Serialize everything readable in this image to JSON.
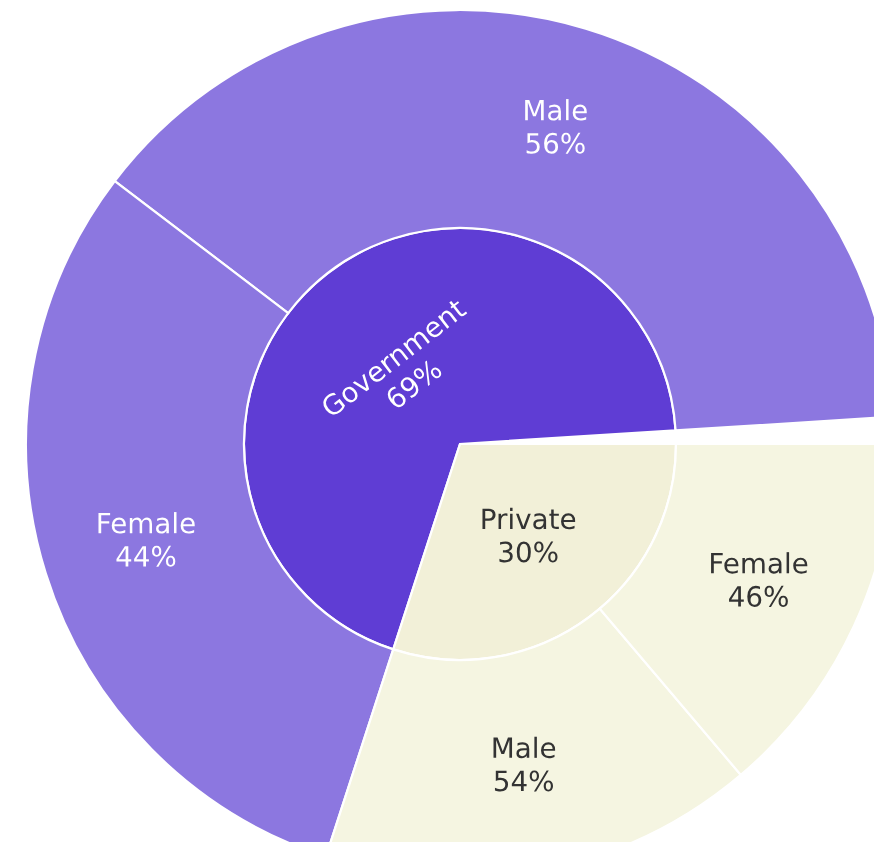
{
  "chart_data": {
    "type": "other",
    "categories": [
      "Government",
      "Private",
      "Male",
      "Female",
      "Male",
      "Female"
    ],
    "values": [
      69,
      30,
      56,
      44,
      54,
      46
    ],
    "value_labels": [
      "69%",
      "30%",
      "56%",
      "44%",
      "54%",
      "46%"
    ],
    "colors": [
      "#5f3dd4",
      "#f2f0d8",
      "#8c77e0",
      "#8c77e0",
      "#f5f5e1",
      "#f5f5e1"
    ]
  }
}
